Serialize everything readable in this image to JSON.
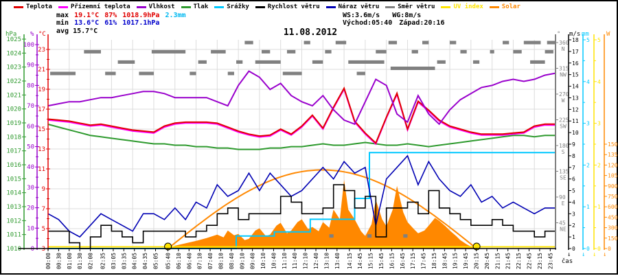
{
  "title": "11.08.2012",
  "legend": [
    {
      "label": "Teplota",
      "color": "#e00000",
      "text_color": "#000000"
    },
    {
      "label": "Přízemní teplota",
      "color": "#ff00ff",
      "text_color": "#000000"
    },
    {
      "label": "Vlhkost",
      "color": "#9900cc",
      "text_color": "#000000"
    },
    {
      "label": "Tlak",
      "color": "#2e9a2e",
      "text_color": "#000000"
    },
    {
      "label": "Srážky",
      "color": "#00c8ff",
      "text_color": "#000000"
    },
    {
      "label": "Rychlost větru",
      "color": "#000000",
      "text_color": "#000000"
    },
    {
      "label": "Náraz větru",
      "color": "#0000b3",
      "text_color": "#000000"
    },
    {
      "label": "Směr větru",
      "color": "#808080",
      "text_color": "#000000"
    },
    {
      "label": "UV index",
      "color": "#ffe400",
      "text_color": "#ffe400"
    },
    {
      "label": "Solar",
      "color": "#ff8800",
      "text_color": "#ff8800"
    }
  ],
  "stats": {
    "max_label": "max",
    "max_temp": "19.1°C",
    "max_hum": "87%",
    "max_press": "1018.9hPa",
    "rain_total": "2.3mm",
    "min_label": "min",
    "min_temp": "13.6°C",
    "min_hum": "61%",
    "min_press": "1017.1hPa",
    "avg_temp": "avg 15.7°C",
    "wind_speed": "WS:3.6m/s",
    "wind_gust": "WG:8m/s",
    "sunrise": "Východ:05:40",
    "sunset": "Západ:20:16"
  },
  "x_axis": {
    "label": "čas",
    "ticks": [
      "00:00",
      "00:30",
      "01:00",
      "01:30",
      "02:00",
      "02:35",
      "03:05",
      "03:35",
      "04:05",
      "04:35",
      "05:05",
      "05:40",
      "06:10",
      "06:40",
      "07:10",
      "07:40",
      "08:10",
      "08:40",
      "09:10",
      "09:40",
      "10:10",
      "10:40",
      "11:10",
      "11:40",
      "12:10",
      "12:40",
      "13:10",
      "13:40",
      "14:15",
      "14:45",
      "15:15",
      "15:45",
      "16:15",
      "16:45",
      "17:15",
      "17:45",
      "18:15",
      "18:45",
      "19:15",
      "19:45",
      "20:15",
      "20:45",
      "21:15",
      "21:45",
      "22:15",
      "22:45",
      "23:15",
      "23:45"
    ]
  },
  "axes": {
    "left": [
      {
        "unit": "hPa",
        "color": "#2e9a2e",
        "min": 1010,
        "max": 1025,
        "label_step": 1,
        "tick_step": 1,
        "scale": "hpa"
      },
      {
        "unit": "%",
        "color": "#9900cc",
        "min": 0,
        "max": 100,
        "label_step": 10,
        "tick_step": 5,
        "scale": "pct"
      },
      {
        "unit": "°C",
        "color": "#e00000",
        "min": 3,
        "max": 23,
        "label_step": 2,
        "tick_step": 1,
        "scale": "c"
      }
    ],
    "right": [
      {
        "unit": "°",
        "color": "#808080",
        "min": 45,
        "max": 360,
        "label_step": 45,
        "tick_step": 45,
        "scale": "deg",
        "compass": {
          "360": "N",
          "315": "NW",
          "270": "W",
          "225": "SW",
          "180": "S",
          "135": "SE",
          "90": "E",
          "45": "NE"
        }
      },
      {
        "unit": "m/s",
        "color": "#000000",
        "min": 0,
        "max": 18,
        "label_step": 1,
        "tick_step": 1,
        "scale": "ms",
        "zero_arrow": true
      },
      {
        "unit": "mm",
        "color": "#00c8ff",
        "min": 0,
        "max": 5,
        "label_step": 1,
        "tick_step": 0.5,
        "scale": "mm",
        "zero_arrow": true
      },
      {
        "unit": "",
        "color": "#ffe400",
        "min": 0,
        "max": 5,
        "label_step": 1,
        "tick_step": 0.5,
        "scale": "uv",
        "zero_arrow": true
      },
      {
        "unit": "W",
        "color": "#ff8800",
        "min": 0,
        "max": 1500,
        "label_step": 150,
        "tick_step": 150,
        "scale": "w",
        "zero_arrow": true
      }
    ]
  },
  "chart_data": {
    "type": "line",
    "x_unit": "hours",
    "x_range": [
      0,
      24
    ],
    "sample_step_h": 0.5,
    "grid": true,
    "series": [
      {
        "name": "Teplota",
        "unit": "°C",
        "color": "#e00000",
        "scale": "c",
        "style": "line",
        "width": 2,
        "values": [
          16.0,
          15.9,
          15.8,
          15.6,
          15.4,
          15.5,
          15.3,
          15.1,
          14.9,
          14.8,
          14.7,
          15.3,
          15.6,
          15.7,
          15.7,
          15.7,
          15.6,
          15.2,
          14.8,
          14.5,
          14.3,
          14.4,
          15.0,
          14.5,
          15.3,
          16.4,
          15.1,
          17.2,
          19.1,
          15.8,
          14.6,
          13.6,
          16.2,
          18.6,
          15.0,
          17.8,
          16.9,
          15.9,
          15.3,
          15.0,
          14.7,
          14.5,
          14.5,
          14.5,
          14.6,
          14.7,
          15.3,
          15.5,
          15.5
        ]
      },
      {
        "name": "Přízemní teplota",
        "unit": "°C",
        "color": "#ff00ff",
        "scale": "c",
        "style": "line",
        "width": 2,
        "values": [
          15.9,
          15.8,
          15.7,
          15.5,
          15.3,
          15.4,
          15.2,
          15.0,
          14.8,
          14.7,
          14.6,
          15.2,
          15.5,
          15.6,
          15.6,
          15.6,
          15.5,
          15.1,
          14.7,
          14.4,
          14.2,
          14.3,
          14.9,
          14.4,
          15.2,
          16.3,
          15.0,
          17.1,
          19.0,
          15.7,
          14.5,
          13.5,
          16.1,
          18.5,
          14.9,
          17.7,
          16.8,
          15.8,
          15.2,
          14.9,
          14.6,
          14.4,
          14.4,
          14.4,
          14.5,
          14.6,
          15.2,
          15.4,
          15.4
        ]
      },
      {
        "name": "Vlhkost",
        "unit": "%",
        "color": "#9900cc",
        "scale": "pct",
        "style": "line",
        "width": 2,
        "values": [
          70,
          71,
          72,
          72,
          73,
          74,
          74,
          75,
          76,
          77,
          77,
          76,
          74,
          74,
          74,
          74,
          72,
          70,
          80,
          87,
          84,
          78,
          81,
          75,
          72,
          70,
          75,
          68,
          63,
          61,
          72,
          83,
          80,
          66,
          62,
          75,
          66,
          61,
          68,
          73,
          76,
          79,
          80,
          82,
          83,
          82,
          83,
          85,
          86
        ]
      },
      {
        "name": "Tlak",
        "unit": "hPa",
        "color": "#2e9a2e",
        "scale": "hpa",
        "style": "line",
        "width": 2,
        "values": [
          1018.9,
          1018.7,
          1018.5,
          1018.3,
          1018.1,
          1018.0,
          1017.9,
          1017.8,
          1017.7,
          1017.6,
          1017.5,
          1017.5,
          1017.4,
          1017.4,
          1017.3,
          1017.3,
          1017.2,
          1017.2,
          1017.1,
          1017.1,
          1017.1,
          1017.2,
          1017.2,
          1017.3,
          1017.3,
          1017.4,
          1017.5,
          1017.4,
          1017.4,
          1017.5,
          1017.6,
          1017.5,
          1017.4,
          1017.4,
          1017.5,
          1017.4,
          1017.3,
          1017.4,
          1017.5,
          1017.6,
          1017.7,
          1017.8,
          1017.9,
          1018.0,
          1018.1,
          1018.1,
          1018.0,
          1018.1,
          1018.1
        ]
      },
      {
        "name": "Rychlost větru",
        "unit": "m/s",
        "color": "#000000",
        "scale": "ms",
        "style": "step",
        "width": 1.6,
        "values": [
          1.5,
          1.5,
          0.5,
          0.0,
          1.0,
          2.0,
          1.5,
          1.0,
          0.5,
          1.5,
          1.5,
          1.5,
          1.5,
          1.0,
          1.5,
          2.0,
          3.0,
          3.5,
          2.5,
          3.0,
          3.0,
          3.0,
          4.5,
          4.0,
          3.0,
          3.0,
          3.5,
          5.5,
          5.0,
          3.5,
          4.5,
          1.0,
          3.5,
          3.5,
          4.0,
          3.0,
          5.0,
          3.5,
          3.0,
          2.5,
          2.0,
          2.0,
          2.5,
          2.0,
          1.5,
          1.5,
          1.0,
          1.5,
          1.5
        ]
      },
      {
        "name": "Náraz větru",
        "unit": "m/s",
        "color": "#0000b3",
        "scale": "ms",
        "style": "line",
        "width": 1.6,
        "values": [
          3.0,
          2.5,
          1.5,
          1.0,
          2.0,
          3.0,
          2.5,
          2.0,
          1.5,
          3.0,
          3.0,
          2.5,
          3.5,
          2.5,
          4.0,
          3.5,
          5.5,
          4.5,
          5.0,
          6.5,
          5.0,
          6.5,
          5.5,
          4.5,
          5.0,
          6.0,
          7.0,
          6.0,
          7.5,
          6.5,
          7.0,
          2.0,
          6.0,
          7.0,
          8.0,
          5.5,
          7.5,
          6.0,
          5.0,
          4.5,
          5.5,
          4.0,
          4.5,
          3.5,
          4.0,
          3.5,
          3.0,
          3.5,
          3.5
        ]
      },
      {
        "name": "UV index",
        "unit": "UV",
        "color": "#ffe400",
        "scale": "uv",
        "style": "flat",
        "width": 2,
        "value": 0
      }
    ],
    "rain_cumulative_mm": {
      "name": "Srážky",
      "color": "#00c8ff",
      "scale": "mm",
      "width": 2,
      "points": [
        [
          0,
          0
        ],
        [
          8.8,
          0
        ],
        [
          8.9,
          0.3
        ],
        [
          10.6,
          0.3
        ],
        [
          10.7,
          0.4
        ],
        [
          12.3,
          0.4
        ],
        [
          12.4,
          0.7
        ],
        [
          14.4,
          0.7
        ],
        [
          14.5,
          1.2
        ],
        [
          15.1,
          1.2
        ],
        [
          15.2,
          2.3
        ],
        [
          24,
          2.3
        ]
      ]
    },
    "wind_direction_deg": {
      "name": "Směr větru",
      "color": "#808080",
      "segments": [
        [
          0.1,
          1.3,
          306
        ],
        [
          1.7,
          2.5,
          344
        ],
        [
          2.7,
          3.2,
          306
        ],
        [
          3.3,
          4.1,
          326
        ],
        [
          4.3,
          5.0,
          306
        ],
        [
          4.9,
          6.5,
          344
        ],
        [
          6.7,
          7.0,
          306
        ],
        [
          7.1,
          7.5,
          326
        ],
        [
          7.7,
          8.4,
          344
        ],
        [
          8.5,
          8.8,
          306
        ],
        [
          8.9,
          9.2,
          326
        ],
        [
          9.3,
          9.7,
          360
        ],
        [
          9.8,
          11.0,
          326
        ],
        [
          10.1,
          10.5,
          344
        ],
        [
          11.1,
          12.0,
          306
        ],
        [
          11.3,
          11.7,
          344
        ],
        [
          12.1,
          12.4,
          360
        ],
        [
          12.5,
          13.0,
          326
        ],
        [
          13.1,
          13.4,
          344
        ],
        [
          13.3,
          13.5,
          22
        ],
        [
          13.6,
          14.1,
          360
        ],
        [
          14.2,
          15.9,
          326
        ],
        [
          14.6,
          15.0,
          306
        ],
        [
          15.1,
          15.3,
          22
        ],
        [
          15.5,
          16.0,
          344
        ],
        [
          16.1,
          16.5,
          360
        ],
        [
          16.2,
          18.3,
          315
        ],
        [
          16.8,
          17.0,
          22
        ],
        [
          17.2,
          17.5,
          344
        ],
        [
          17.7,
          18.0,
          360
        ],
        [
          18.4,
          18.8,
          326
        ],
        [
          19.0,
          19.3,
          360
        ],
        [
          19.5,
          19.8,
          344
        ],
        [
          20.1,
          20.4,
          326
        ],
        [
          20.9,
          21.1,
          344
        ],
        [
          21.5,
          21.8,
          360
        ],
        [
          22.0,
          22.4,
          344
        ],
        [
          22.5,
          23.3,
          360
        ],
        [
          22.8,
          23.5,
          326
        ],
        [
          23.5,
          23.9,
          344
        ],
        [
          23.6,
          24.0,
          360
        ]
      ]
    },
    "solar_actual_w": {
      "name": "Solar",
      "color": "#ff8800",
      "points": [
        [
          5.7,
          0
        ],
        [
          6,
          40
        ],
        [
          6.5,
          75
        ],
        [
          7,
          110
        ],
        [
          7.5,
          150
        ],
        [
          8,
          200
        ],
        [
          8.3,
          160
        ],
        [
          8.5,
          260
        ],
        [
          8.8,
          190
        ],
        [
          9,
          210
        ],
        [
          9.3,
          120
        ],
        [
          9.5,
          140
        ],
        [
          9.8,
          260
        ],
        [
          10,
          290
        ],
        [
          10.3,
          180
        ],
        [
          10.5,
          200
        ],
        [
          10.8,
          330
        ],
        [
          11,
          370
        ],
        [
          11.3,
          220
        ],
        [
          11.5,
          260
        ],
        [
          11.8,
          380
        ],
        [
          12,
          420
        ],
        [
          12.3,
          280
        ],
        [
          12.5,
          310
        ],
        [
          12.8,
          250
        ],
        [
          13,
          380
        ],
        [
          13.3,
          300
        ],
        [
          13.5,
          560
        ],
        [
          13.8,
          420
        ],
        [
          14,
          990
        ],
        [
          14.2,
          560
        ],
        [
          14.5,
          420
        ],
        [
          14.8,
          250
        ],
        [
          15,
          180
        ],
        [
          15.3,
          350
        ],
        [
          15.5,
          700
        ],
        [
          15.8,
          420
        ],
        [
          16,
          320
        ],
        [
          16.3,
          560
        ],
        [
          16.5,
          900
        ],
        [
          16.8,
          520
        ],
        [
          17,
          380
        ],
        [
          17.3,
          280
        ],
        [
          17.5,
          220
        ],
        [
          17.8,
          260
        ],
        [
          18,
          330
        ],
        [
          18.3,
          440
        ],
        [
          18.5,
          400
        ],
        [
          18.8,
          320
        ],
        [
          19,
          260
        ],
        [
          19.3,
          180
        ],
        [
          19.5,
          120
        ],
        [
          19.8,
          60
        ],
        [
          20,
          30
        ],
        [
          20.3,
          0
        ]
      ]
    },
    "solar_theoretical_w": {
      "color": "#ff8800",
      "sunrise_h": 5.67,
      "sunset_h": 20.27,
      "peak_w": 1130
    },
    "sun_markers_h": [
      5.67,
      20.27
    ]
  }
}
